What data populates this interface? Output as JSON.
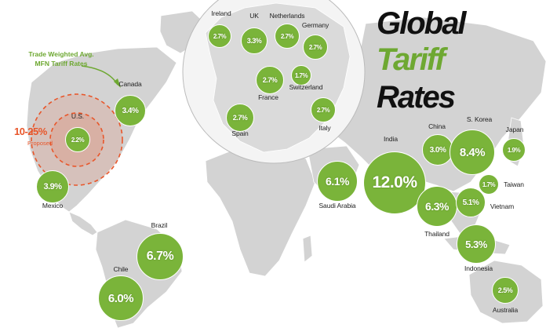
{
  "title_lines": [
    "Global",
    "Tariff",
    "Rates"
  ],
  "legend_text": "Trade Weighted Avg. MFN Tariff Rates",
  "proposed": {
    "range": "10-25%",
    "label": "Proposed"
  },
  "colors": {
    "bubble": "#7ab43a",
    "accent": "#6ea832",
    "proposed": "#e8562a",
    "land": "#d3d3d3",
    "inset": "#f4f4f4"
  },
  "countries": [
    {
      "id": "ireland",
      "name": "Ireland",
      "rate": "2.7%",
      "tariff_percent": 2.7
    },
    {
      "id": "uk",
      "name": "UK",
      "rate": "3.3%",
      "tariff_percent": 3.3
    },
    {
      "id": "netherlands",
      "name": "Netherlands",
      "rate": "2.7%",
      "tariff_percent": 2.7
    },
    {
      "id": "germany",
      "name": "Germany",
      "rate": "2.7%",
      "tariff_percent": 2.7
    },
    {
      "id": "france",
      "name": "France",
      "rate": "2.7%",
      "tariff_percent": 2.7
    },
    {
      "id": "switzerland",
      "name": "Switzerland",
      "rate": "1.7%",
      "tariff_percent": 1.7
    },
    {
      "id": "spain",
      "name": "Spain",
      "rate": "2.7%",
      "tariff_percent": 2.7
    },
    {
      "id": "italy",
      "name": "Italy",
      "rate": "2.7%",
      "tariff_percent": 2.7
    },
    {
      "id": "canada",
      "name": "Canada",
      "rate": "3.4%",
      "tariff_percent": 3.4
    },
    {
      "id": "us",
      "name": "U.S.",
      "rate": "2.2%",
      "tariff_percent": 2.2
    },
    {
      "id": "mexico",
      "name": "Mexico",
      "rate": "3.9%",
      "tariff_percent": 3.9
    },
    {
      "id": "brazil",
      "name": "Brazil",
      "rate": "6.7%",
      "tariff_percent": 6.7
    },
    {
      "id": "chile",
      "name": "Chile",
      "rate": "6.0%",
      "tariff_percent": 6.0
    },
    {
      "id": "saudi-arabia",
      "name": "Saudi Arabia",
      "rate": "6.1%",
      "tariff_percent": 6.1
    },
    {
      "id": "india",
      "name": "India",
      "rate": "12.0%",
      "tariff_percent": 12.0
    },
    {
      "id": "china",
      "name": "China",
      "rate": "3.0%",
      "tariff_percent": 3.0
    },
    {
      "id": "s-korea",
      "name": "S. Korea",
      "rate": "8.4%",
      "tariff_percent": 8.4
    },
    {
      "id": "japan",
      "name": "Japan",
      "rate": "1.9%",
      "tariff_percent": 1.9
    },
    {
      "id": "taiwan",
      "name": "Taiwan",
      "rate": "1.7%",
      "tariff_percent": 1.7
    },
    {
      "id": "thailand",
      "name": "Thailand",
      "rate": "6.3%",
      "tariff_percent": 6.3
    },
    {
      "id": "vietnam",
      "name": "Vietnam",
      "rate": "5.1%",
      "tariff_percent": 5.1
    },
    {
      "id": "indonesia",
      "name": "Indonesia",
      "rate": "5.3%",
      "tariff_percent": 5.3
    },
    {
      "id": "australia",
      "name": "Australia",
      "rate": "2.5%",
      "tariff_percent": 2.5
    }
  ]
}
